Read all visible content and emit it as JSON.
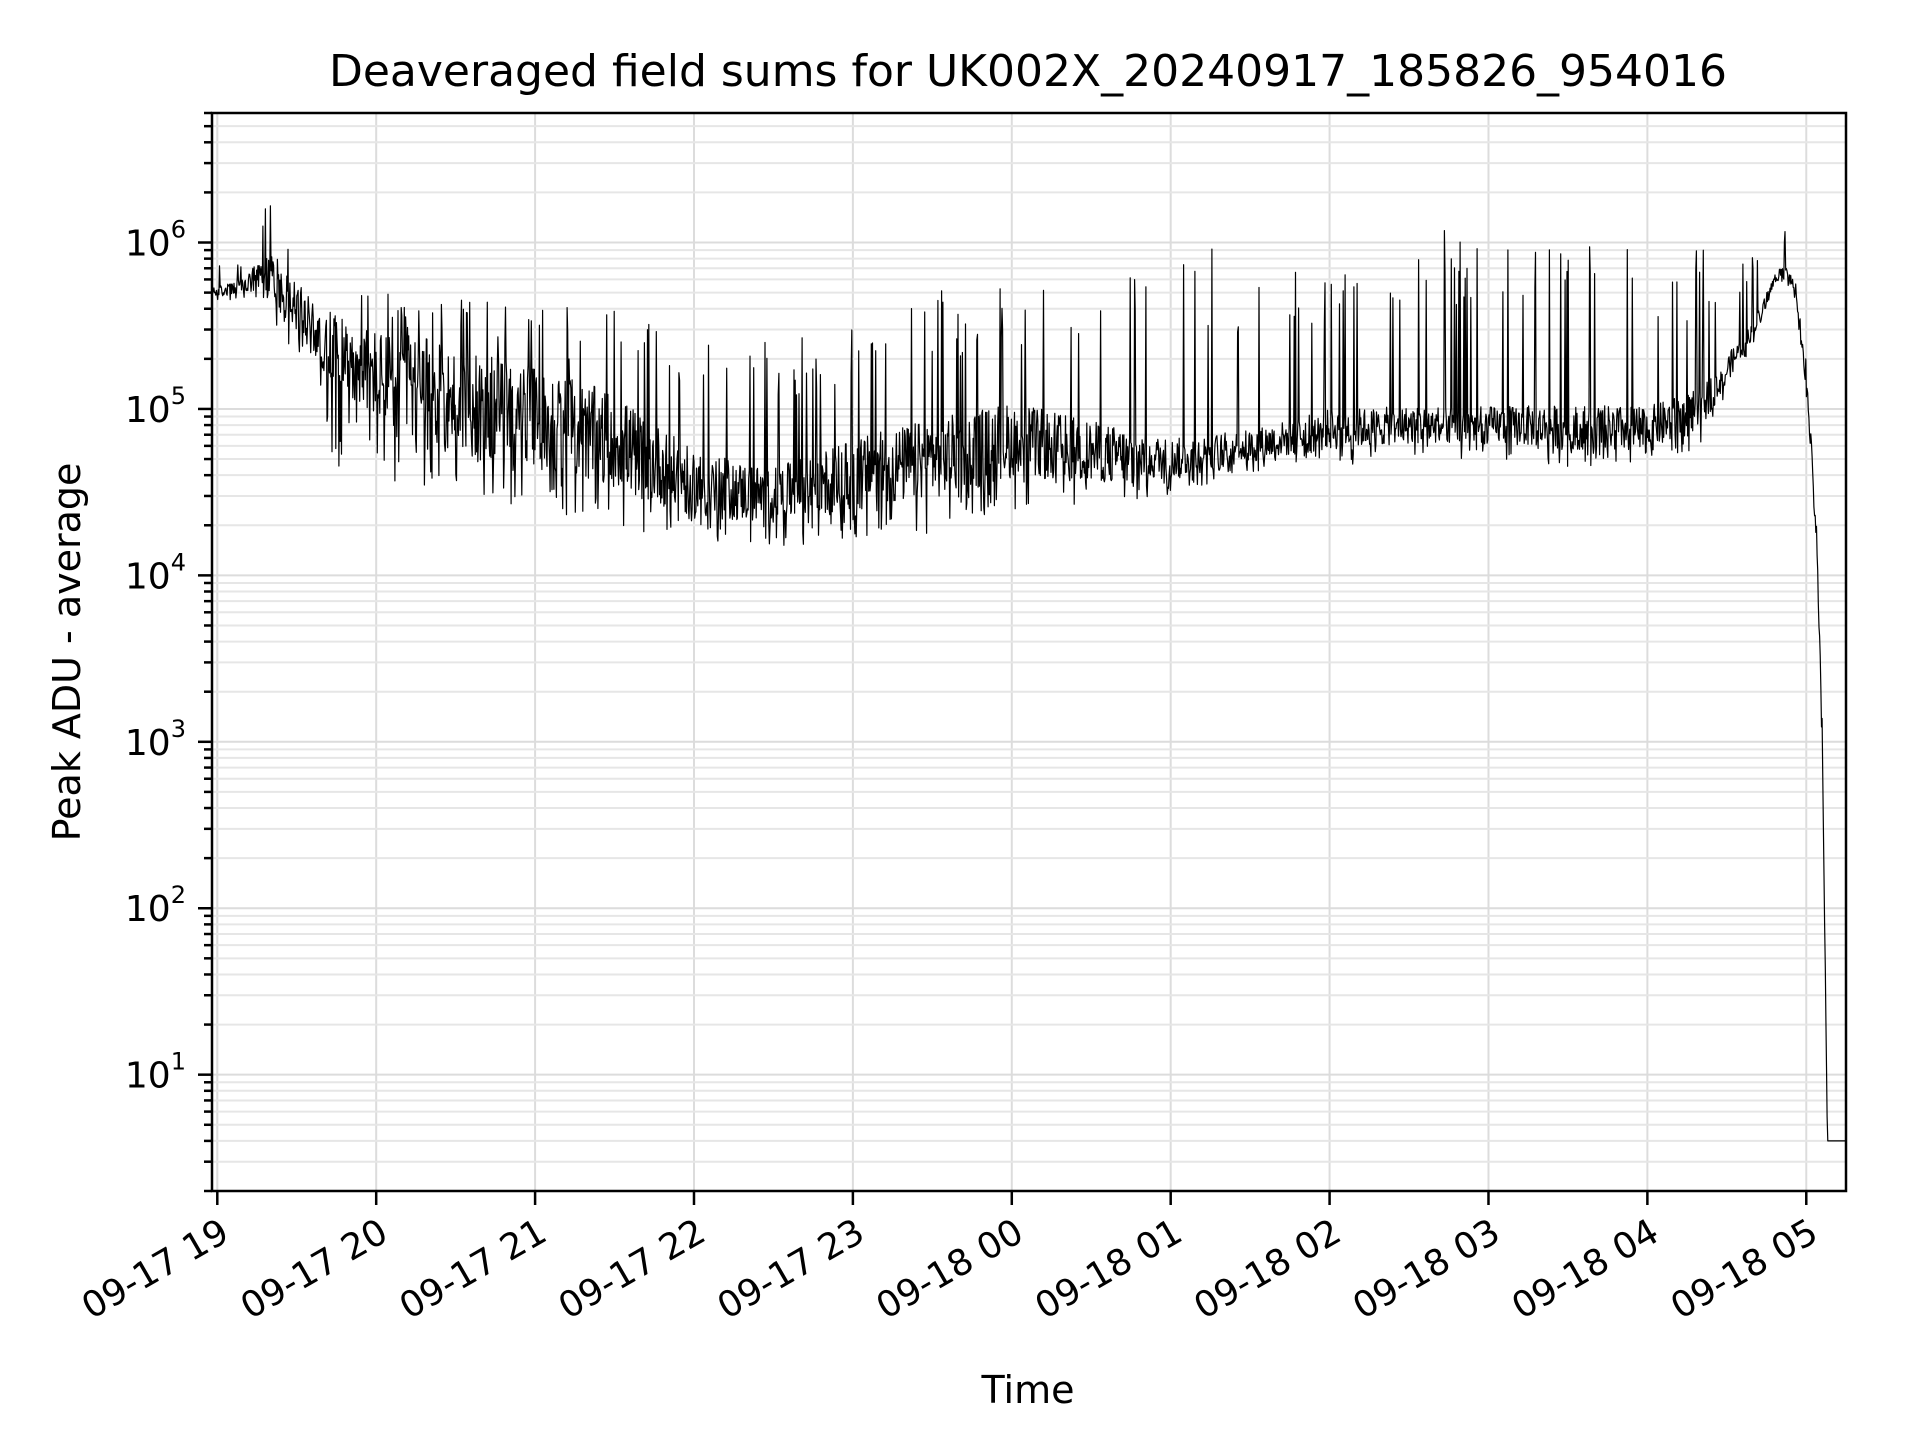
{
  "chart_data": {
    "type": "line",
    "title": "Deaveraged field sums for UK002X_20240917_185826_954016",
    "xlabel": "Time",
    "ylabel": "Peak ADU - average",
    "yscale": "log",
    "ylim": [
      2,
      6000000
    ],
    "xlim": [
      "2024-09-17 18:58",
      "2024-09-18 05:15"
    ],
    "grid": true,
    "legend": "none",
    "line_color": "#000000",
    "x_ticks": [
      {
        "t": "2024-09-17 19:00",
        "label": "09-17 19"
      },
      {
        "t": "2024-09-17 20:00",
        "label": "09-17 20"
      },
      {
        "t": "2024-09-17 21:00",
        "label": "09-17 21"
      },
      {
        "t": "2024-09-17 22:00",
        "label": "09-17 22"
      },
      {
        "t": "2024-09-17 23:00",
        "label": "09-17 23"
      },
      {
        "t": "2024-09-18 00:00",
        "label": "09-18 00"
      },
      {
        "t": "2024-09-18 01:00",
        "label": "09-18 01"
      },
      {
        "t": "2024-09-18 02:00",
        "label": "09-18 02"
      },
      {
        "t": "2024-09-18 03:00",
        "label": "09-18 03"
      },
      {
        "t": "2024-09-18 04:00",
        "label": "09-18 04"
      },
      {
        "t": "2024-09-18 05:00",
        "label": "09-18 05"
      }
    ],
    "y_ticks": [
      {
        "value": 10,
        "base": "10",
        "exp": "1"
      },
      {
        "value": 100,
        "base": "10",
        "exp": "2"
      },
      {
        "value": 1000,
        "base": "10",
        "exp": "3"
      },
      {
        "value": 10000,
        "base": "10",
        "exp": "4"
      },
      {
        "value": 100000,
        "base": "10",
        "exp": "5"
      },
      {
        "value": 1000000,
        "base": "10",
        "exp": "6"
      }
    ],
    "series": [
      {
        "envelope": {
          "x": [
            "2024-09-17 18:58",
            "2024-09-17 19:10",
            "2024-09-17 19:20",
            "2024-09-17 19:30",
            "2024-09-17 19:40",
            "2024-09-17 20:00",
            "2024-09-17 20:30",
            "2024-09-17 21:00",
            "2024-09-17 21:30",
            "2024-09-17 22:00",
            "2024-09-17 22:30",
            "2024-09-17 23:00",
            "2024-09-17 23:30",
            "2024-09-18 00:00",
            "2024-09-18 00:30",
            "2024-09-18 01:00",
            "2024-09-18 01:30",
            "2024-09-18 02:00",
            "2024-09-18 02:30",
            "2024-09-18 03:00",
            "2024-09-18 03:30",
            "2024-09-18 04:00",
            "2024-09-18 04:20",
            "2024-09-18 04:40",
            "2024-09-18 04:50",
            "2024-09-18 04:55",
            "2024-09-18 05:00",
            "2024-09-18 05:04",
            "2024-09-18 05:06",
            "2024-09-18 05:08",
            "2024-09-18 05:15"
          ],
          "median": [
            500000,
            550000,
            650000,
            400000,
            250000,
            160000,
            110000,
            90000,
            65000,
            35000,
            30000,
            40000,
            50000,
            65000,
            55000,
            50000,
            60000,
            75000,
            80000,
            80000,
            78000,
            75000,
            100000,
            300000,
            700000,
            600000,
            150000,
            15000,
            1200,
            4,
            4
          ],
          "low": [
            450000,
            450000,
            350000,
            200000,
            50000,
            30000,
            30000,
            25000,
            20000,
            15000,
            15000,
            16000,
            18000,
            25000,
            25000,
            30000,
            40000,
            45000,
            50000,
            50000,
            45000,
            42000,
            60000,
            250000,
            600000,
            500000,
            120000,
            12000,
            800,
            4,
            4
          ],
          "high": [
            800000,
            800000,
            2000000,
            800000,
            500000,
            500000,
            500000,
            450000,
            400000,
            350000,
            300000,
            400000,
            500000,
            700000,
            800000,
            900000,
            1000000,
            1100000,
            1200000,
            1200000,
            1100000,
            1000000,
            900000,
            900000,
            1700000,
            800000,
            200000,
            20000,
            1500,
            4,
            4
          ]
        }
      }
    ]
  }
}
